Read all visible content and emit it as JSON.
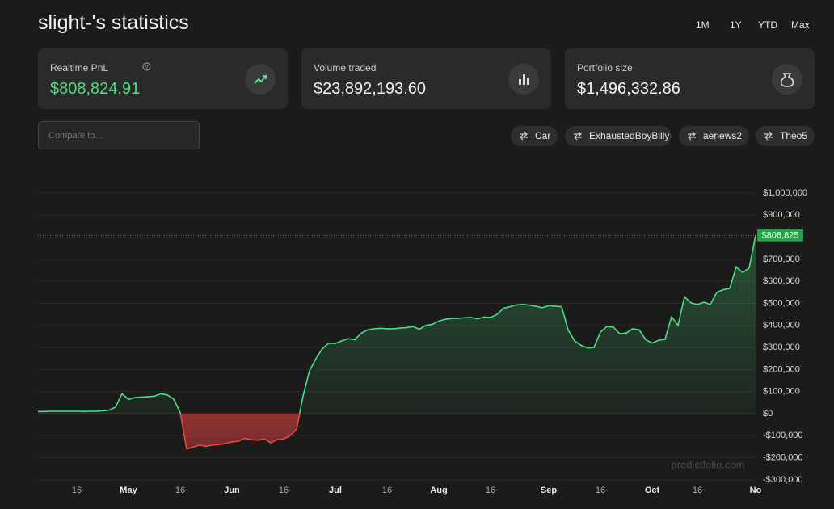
{
  "header": {
    "title": "slight-'s statistics",
    "ranges": [
      "1M",
      "1Y",
      "YTD",
      "Max"
    ]
  },
  "cards": [
    {
      "label": "Realtime PnL",
      "value": "$808,824.91"
    },
    {
      "label": "Volume traded",
      "value": "$23,892,193.60"
    },
    {
      "label": "Portfolio size",
      "value": "$1,496,332.86"
    }
  ],
  "compare": {
    "placeholder": "Compare to...",
    "chips": [
      "Car",
      "ExhaustedBoyBilly",
      "aenews2",
      "Theo5"
    ]
  },
  "chart_data": {
    "type": "area",
    "categories": [
      null,
      null,
      null,
      null,
      null,
      null,
      "16",
      null,
      null,
      null,
      null,
      null,
      null,
      null,
      "May",
      null,
      null,
      null,
      null,
      null,
      null,
      null,
      "16",
      null,
      null,
      null,
      null,
      null,
      null,
      null,
      "Jun",
      null,
      null,
      null,
      null,
      null,
      null,
      null,
      "16",
      null,
      null,
      null,
      null,
      null,
      null,
      null,
      "Jul",
      null,
      null,
      null,
      null,
      null,
      null,
      null,
      "16",
      null,
      null,
      null,
      null,
      null,
      null,
      null,
      "Aug",
      null,
      null,
      null,
      null,
      null,
      null,
      null,
      "16",
      null,
      null,
      null,
      null,
      null,
      null,
      null,
      null,
      "Sep",
      null,
      null,
      null,
      null,
      null,
      null,
      null,
      "16",
      null,
      null,
      null,
      null,
      null,
      null,
      null,
      "Oct",
      null,
      null,
      null,
      null,
      null,
      null,
      "16",
      null,
      null,
      null,
      null,
      null,
      null,
      null,
      null,
      "No"
    ],
    "values": [
      10000,
      10000,
      11000,
      11000,
      11000,
      11000,
      11000,
      10000,
      11000,
      11000,
      13000,
      16000,
      30000,
      90000,
      65000,
      73000,
      75000,
      77000,
      79000,
      90000,
      85000,
      66000,
      5000,
      -160000,
      -152000,
      -142000,
      -148000,
      -142000,
      -140000,
      -135000,
      -128000,
      -125000,
      -112000,
      -118000,
      -120000,
      -114000,
      -132000,
      -118000,
      -115000,
      -100000,
      -70000,
      80000,
      195000,
      250000,
      295000,
      320000,
      318000,
      330000,
      340000,
      335000,
      365000,
      380000,
      385000,
      387000,
      385000,
      385000,
      388000,
      390000,
      395000,
      383000,
      400000,
      405000,
      420000,
      428000,
      432000,
      432000,
      435000,
      436000,
      430000,
      438000,
      436000,
      450000,
      478000,
      485000,
      493000,
      495000,
      492000,
      487000,
      480000,
      490000,
      487000,
      485000,
      380000,
      330000,
      310000,
      298000,
      300000,
      370000,
      395000,
      392000,
      362000,
      366000,
      385000,
      380000,
      335000,
      320000,
      333000,
      337000,
      440000,
      400000,
      530000,
      502000,
      495000,
      505000,
      495000,
      550000,
      562000,
      568000,
      665000,
      640000,
      660000,
      808825
    ],
    "color": "#4ade80",
    "negative_color": "#ef4444",
    "ylim": [
      -300000,
      1000000
    ],
    "yticks": [
      {
        "value": 1000000,
        "label": "$1,000,000"
      },
      {
        "value": 900000,
        "label": "$900,000"
      },
      {
        "value": 800000,
        "label": "$800,000"
      },
      {
        "value": 700000,
        "label": "$700,000"
      },
      {
        "value": 600000,
        "label": "$600,000"
      },
      {
        "value": 500000,
        "label": "$500,000"
      },
      {
        "value": 400000,
        "label": "$400,000"
      },
      {
        "value": 300000,
        "label": "$300,000"
      },
      {
        "value": 200000,
        "label": "$200,000"
      },
      {
        "value": 100000,
        "label": "$100,000"
      },
      {
        "value": 0,
        "label": "$0"
      },
      {
        "value": -100000,
        "label": "-$100,000"
      },
      {
        "value": -200000,
        "label": "-$200,000"
      },
      {
        "value": -300000,
        "label": "-$300,000"
      }
    ],
    "grid": true,
    "annotations": [
      {
        "value": 808825,
        "label": "$808,825"
      }
    ],
    "watermark": "predictfolio.com"
  }
}
